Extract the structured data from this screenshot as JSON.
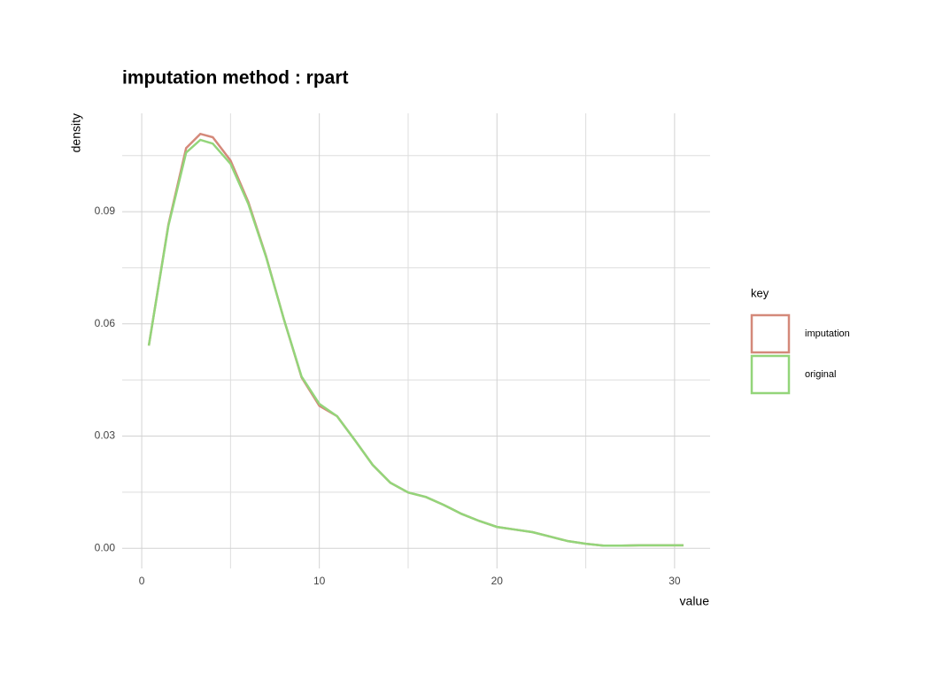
{
  "chart_data": {
    "type": "line",
    "title": "imputation method : rpart",
    "x_label": "value",
    "y_label": "density",
    "xlim": [
      -1.1,
      32
    ],
    "ylim": [
      -0.0054,
      0.1163
    ],
    "xticks": [
      0,
      10,
      20,
      30
    ],
    "yticks": [
      {
        "value": 0,
        "label": "0.00"
      },
      0.03,
      0.06,
      0.09
    ],
    "x_minor_grid": [
      5,
      15,
      25
    ],
    "y_minor_grid": [
      0.015,
      0.045,
      0.075,
      0.105
    ],
    "grid": true,
    "legend_title": "key",
    "legend_position": "right",
    "x": [
      0.4,
      1.5,
      2.5,
      3.3,
      4,
      5,
      6,
      7,
      8,
      9,
      10,
      11,
      12,
      13,
      14,
      15,
      16,
      17,
      18,
      19,
      20,
      21,
      22,
      23,
      24,
      25,
      26,
      27,
      28,
      29,
      30.5
    ],
    "series": [
      {
        "name": "imputation",
        "color": "#d4897a",
        "values": [
          0.0542,
          0.0865,
          0.107,
          0.1108,
          0.1099,
          0.1037,
          0.0926,
          0.0781,
          0.0613,
          0.0457,
          0.0381,
          0.0353,
          0.0289,
          0.0223,
          0.0175,
          0.0149,
          0.0137,
          0.0116,
          0.0092,
          0.0073,
          0.0057,
          0.005,
          0.0043,
          0.0031,
          0.0019,
          0.0012,
          0.0007,
          0.0007,
          0.0008,
          0.0008,
          0.0008
        ]
      },
      {
        "name": "original",
        "color": "#93d57a",
        "values": [
          0.0542,
          0.0862,
          0.1058,
          0.1092,
          0.1082,
          0.1028,
          0.0921,
          0.0779,
          0.0613,
          0.0459,
          0.0386,
          0.0353,
          0.0289,
          0.0223,
          0.0175,
          0.0149,
          0.0137,
          0.0116,
          0.0092,
          0.0073,
          0.0057,
          0.005,
          0.0043,
          0.0031,
          0.0019,
          0.0012,
          0.0007,
          0.0007,
          0.0008,
          0.0008,
          0.0008
        ]
      }
    ]
  }
}
